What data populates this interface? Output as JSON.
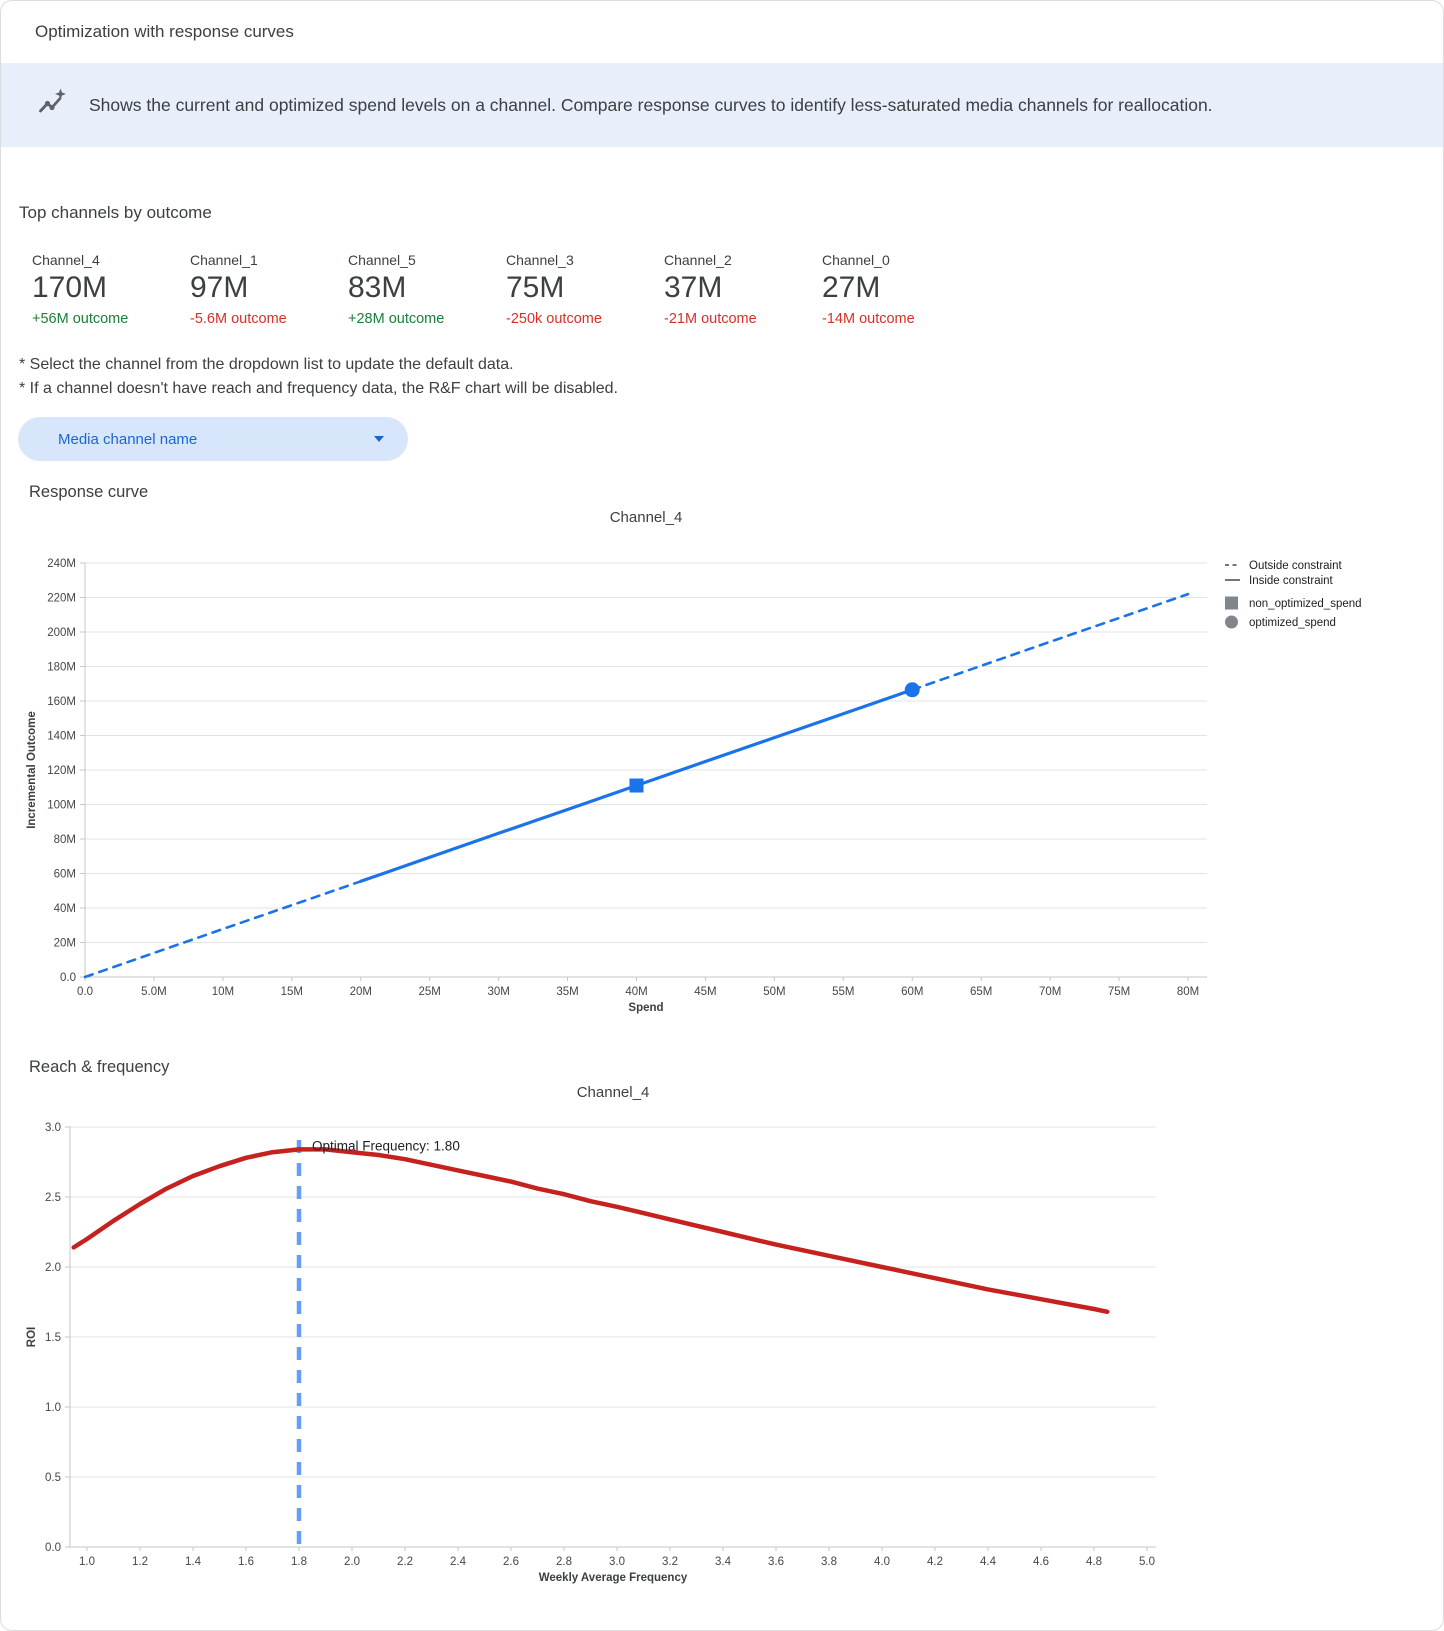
{
  "header": {
    "title": "Optimization with response curves"
  },
  "banner": {
    "icon": "insights-sparkline-icon",
    "text": "Shows the current and optimized spend levels on a channel. Compare response curves to identify less-saturated media channels for reallocation.",
    "background": "#e9eefb"
  },
  "top_channels": {
    "heading": "Top channels by outcome",
    "positive_color": "#188038",
    "negative_color": "#d93025",
    "channels": [
      {
        "name": "Channel_4",
        "value": "170M",
        "delta": "+56M outcome",
        "direction": "up"
      },
      {
        "name": "Channel_1",
        "value": "97M",
        "delta": "-5.6M outcome",
        "direction": "down"
      },
      {
        "name": "Channel_5",
        "value": "83M",
        "delta": "+28M outcome",
        "direction": "up"
      },
      {
        "name": "Channel_3",
        "value": "75M",
        "delta": "-250k outcome",
        "direction": "down"
      },
      {
        "name": "Channel_2",
        "value": "37M",
        "delta": "-21M outcome",
        "direction": "down"
      },
      {
        "name": "Channel_0",
        "value": "27M",
        "delta": "-14M outcome",
        "direction": "down"
      }
    ]
  },
  "notes": [
    "* Select the channel from the dropdown list to update the default data.",
    "* If a channel doesn't have reach and frequency data, the R&F chart will be disabled."
  ],
  "dropdown": {
    "label": "Media channel name",
    "icon": "caret-down-icon"
  },
  "sections": {
    "response_curve": "Response curve",
    "reach_frequency": "Reach & frequency"
  },
  "chart_data": [
    {
      "type": "line",
      "name": "response_curve",
      "title": "Channel_4",
      "xlabel": "Spend",
      "ylabel": "Incremental Outcome",
      "xlim": [
        0,
        80
      ],
      "ylim": [
        0,
        240
      ],
      "grid": true,
      "color": "#1a73e8",
      "x_ticks": {
        "values": [
          0,
          5,
          10,
          15,
          20,
          25,
          30,
          35,
          40,
          45,
          50,
          55,
          60,
          65,
          70,
          75,
          80
        ],
        "labels": [
          "0.0",
          "5.0M",
          "10M",
          "15M",
          "20M",
          "25M",
          "30M",
          "35M",
          "40M",
          "45M",
          "50M",
          "55M",
          "60M",
          "65M",
          "70M",
          "75M",
          "80M"
        ]
      },
      "y_ticks": {
        "values": [
          0,
          20,
          40,
          60,
          80,
          100,
          120,
          140,
          160,
          180,
          200,
          220,
          240
        ],
        "labels": [
          "0.0",
          "20M",
          "40M",
          "60M",
          "80M",
          "100M",
          "120M",
          "140M",
          "160M",
          "180M",
          "200M",
          "220M",
          "240M"
        ]
      },
      "constraint_range": [
        20,
        60
      ],
      "series": [
        {
          "name": "response",
          "points": [
            [
              0,
              0
            ],
            [
              5,
              13.9
            ],
            [
              10,
              27.8
            ],
            [
              15,
              41.6
            ],
            [
              20,
              55.5
            ],
            [
              25,
              69.4
            ],
            [
              30,
              83.3
            ],
            [
              35,
              97.1
            ],
            [
              40,
              111
            ],
            [
              45,
              124.9
            ],
            [
              50,
              138.8
            ],
            [
              55,
              152.6
            ],
            [
              60,
              166.5
            ],
            [
              65,
              180.4
            ],
            [
              70,
              194.3
            ],
            [
              75,
              208.1
            ],
            [
              80,
              222
            ]
          ]
        }
      ],
      "markers": [
        {
          "shape": "square",
          "name": "non_optimized_spend",
          "spend": 40,
          "outcome": 111
        },
        {
          "shape": "circle",
          "name": "optimized_spend",
          "spend": 60,
          "outcome": 166.5
        }
      ],
      "legend": [
        {
          "marker": "dashed-line",
          "label": "Outside constraint"
        },
        {
          "marker": "solid-line",
          "label": "Inside constraint"
        },
        {
          "marker": "square",
          "label": "non_optimized_spend"
        },
        {
          "marker": "circle",
          "label": "optimized_spend"
        }
      ],
      "legend_color": "#80868b",
      "legend_position": "right"
    },
    {
      "type": "line",
      "name": "reach_frequency",
      "title": "Channel_4",
      "xlabel": "Weekly Average Frequency",
      "ylabel": "ROI",
      "xlim": [
        1,
        5
      ],
      "ylim": [
        0,
        3
      ],
      "grid": true,
      "color": "#c5221f",
      "x_ticks": {
        "values": [
          1.0,
          1.2,
          1.4,
          1.6,
          1.8,
          2.0,
          2.2,
          2.4,
          2.6,
          2.8,
          3.0,
          3.2,
          3.4,
          3.6,
          3.8,
          4.0,
          4.2,
          4.4,
          4.6,
          4.8,
          5.0
        ],
        "labels": [
          "1.0",
          "1.2",
          "1.4",
          "1.6",
          "1.8",
          "2.0",
          "2.2",
          "2.4",
          "2.6",
          "2.8",
          "3.0",
          "3.2",
          "3.4",
          "3.6",
          "3.8",
          "4.0",
          "4.2",
          "4.4",
          "4.6",
          "4.8",
          "5.0"
        ]
      },
      "y_ticks": {
        "values": [
          0,
          0.5,
          1.0,
          1.5,
          2.0,
          2.5,
          3.0
        ],
        "labels": [
          "0.0",
          "0.5",
          "1.0",
          "1.5",
          "2.0",
          "2.5",
          "3.0"
        ]
      },
      "optimal_frequency": 1.8,
      "annotation": "Optimal Frequency: 1.80",
      "annotation_line_color": "#669df6",
      "series": [
        {
          "name": "roi",
          "points": [
            [
              0.95,
              2.14
            ],
            [
              1.0,
              2.2
            ],
            [
              1.1,
              2.33
            ],
            [
              1.2,
              2.45
            ],
            [
              1.3,
              2.56
            ],
            [
              1.4,
              2.65
            ],
            [
              1.5,
              2.72
            ],
            [
              1.6,
              2.78
            ],
            [
              1.7,
              2.82
            ],
            [
              1.8,
              2.84
            ],
            [
              1.9,
              2.84
            ],
            [
              2.0,
              2.82
            ],
            [
              2.1,
              2.8
            ],
            [
              2.2,
              2.77
            ],
            [
              2.3,
              2.73
            ],
            [
              2.4,
              2.69
            ],
            [
              2.5,
              2.65
            ],
            [
              2.6,
              2.61
            ],
            [
              2.7,
              2.56
            ],
            [
              2.8,
              2.52
            ],
            [
              2.9,
              2.47
            ],
            [
              3.0,
              2.43
            ],
            [
              3.2,
              2.34
            ],
            [
              3.4,
              2.25
            ],
            [
              3.6,
              2.16
            ],
            [
              3.8,
              2.08
            ],
            [
              4.0,
              2.0
            ],
            [
              4.2,
              1.92
            ],
            [
              4.4,
              1.84
            ],
            [
              4.6,
              1.77
            ],
            [
              4.8,
              1.7
            ],
            [
              4.85,
              1.68
            ]
          ]
        }
      ]
    }
  ]
}
